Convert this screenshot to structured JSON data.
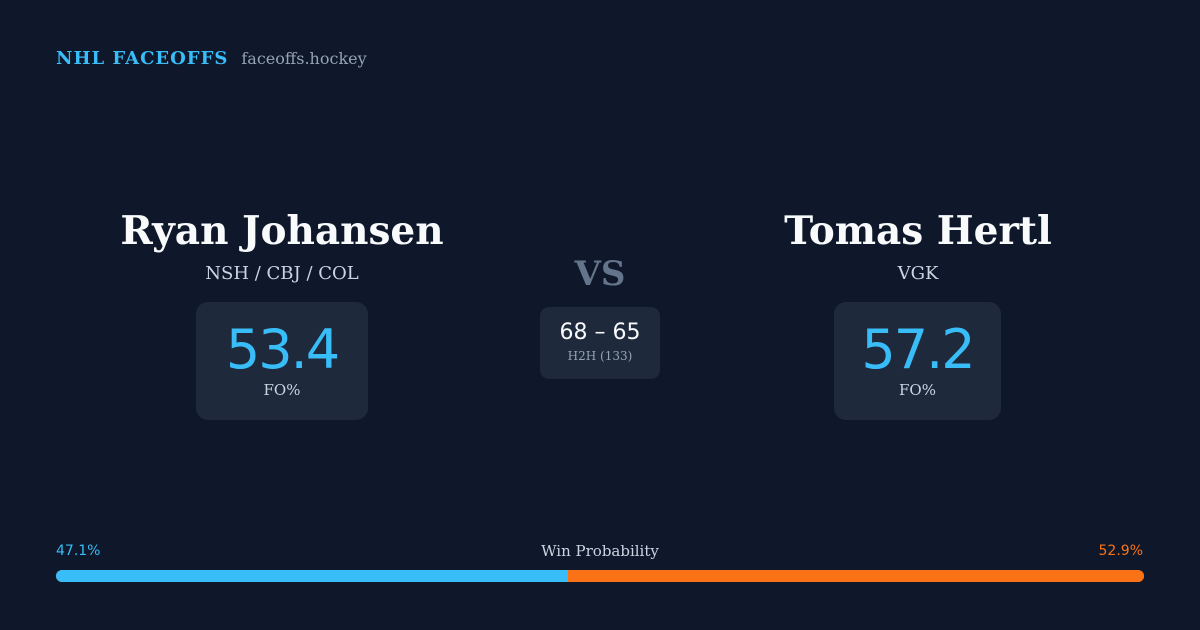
{
  "brand": {
    "title": "NHL FACEOFFS",
    "site": "faceoffs.hockey"
  },
  "player_left": {
    "name": "Ryan Johansen",
    "teams": "NSH / CBJ / COL",
    "fo_pct": "53.4",
    "fo_label": "FO%"
  },
  "player_right": {
    "name": "Tomas Hertl",
    "teams": "VGK",
    "fo_pct": "57.2",
    "fo_label": "FO%"
  },
  "matchup": {
    "vs_label": "VS",
    "h2h_score": "68 – 65",
    "h2h_label": "H2H (133)"
  },
  "win_probability": {
    "title": "Win Probability",
    "left_pct_label": "47.1%",
    "right_pct_label": "52.9%",
    "left_fraction": 0.471,
    "right_fraction": 0.529
  },
  "colors": {
    "background": "#0f172a",
    "card": "#1e293b",
    "accent_blue": "#38bdf8",
    "accent_orange": "#f97316"
  }
}
